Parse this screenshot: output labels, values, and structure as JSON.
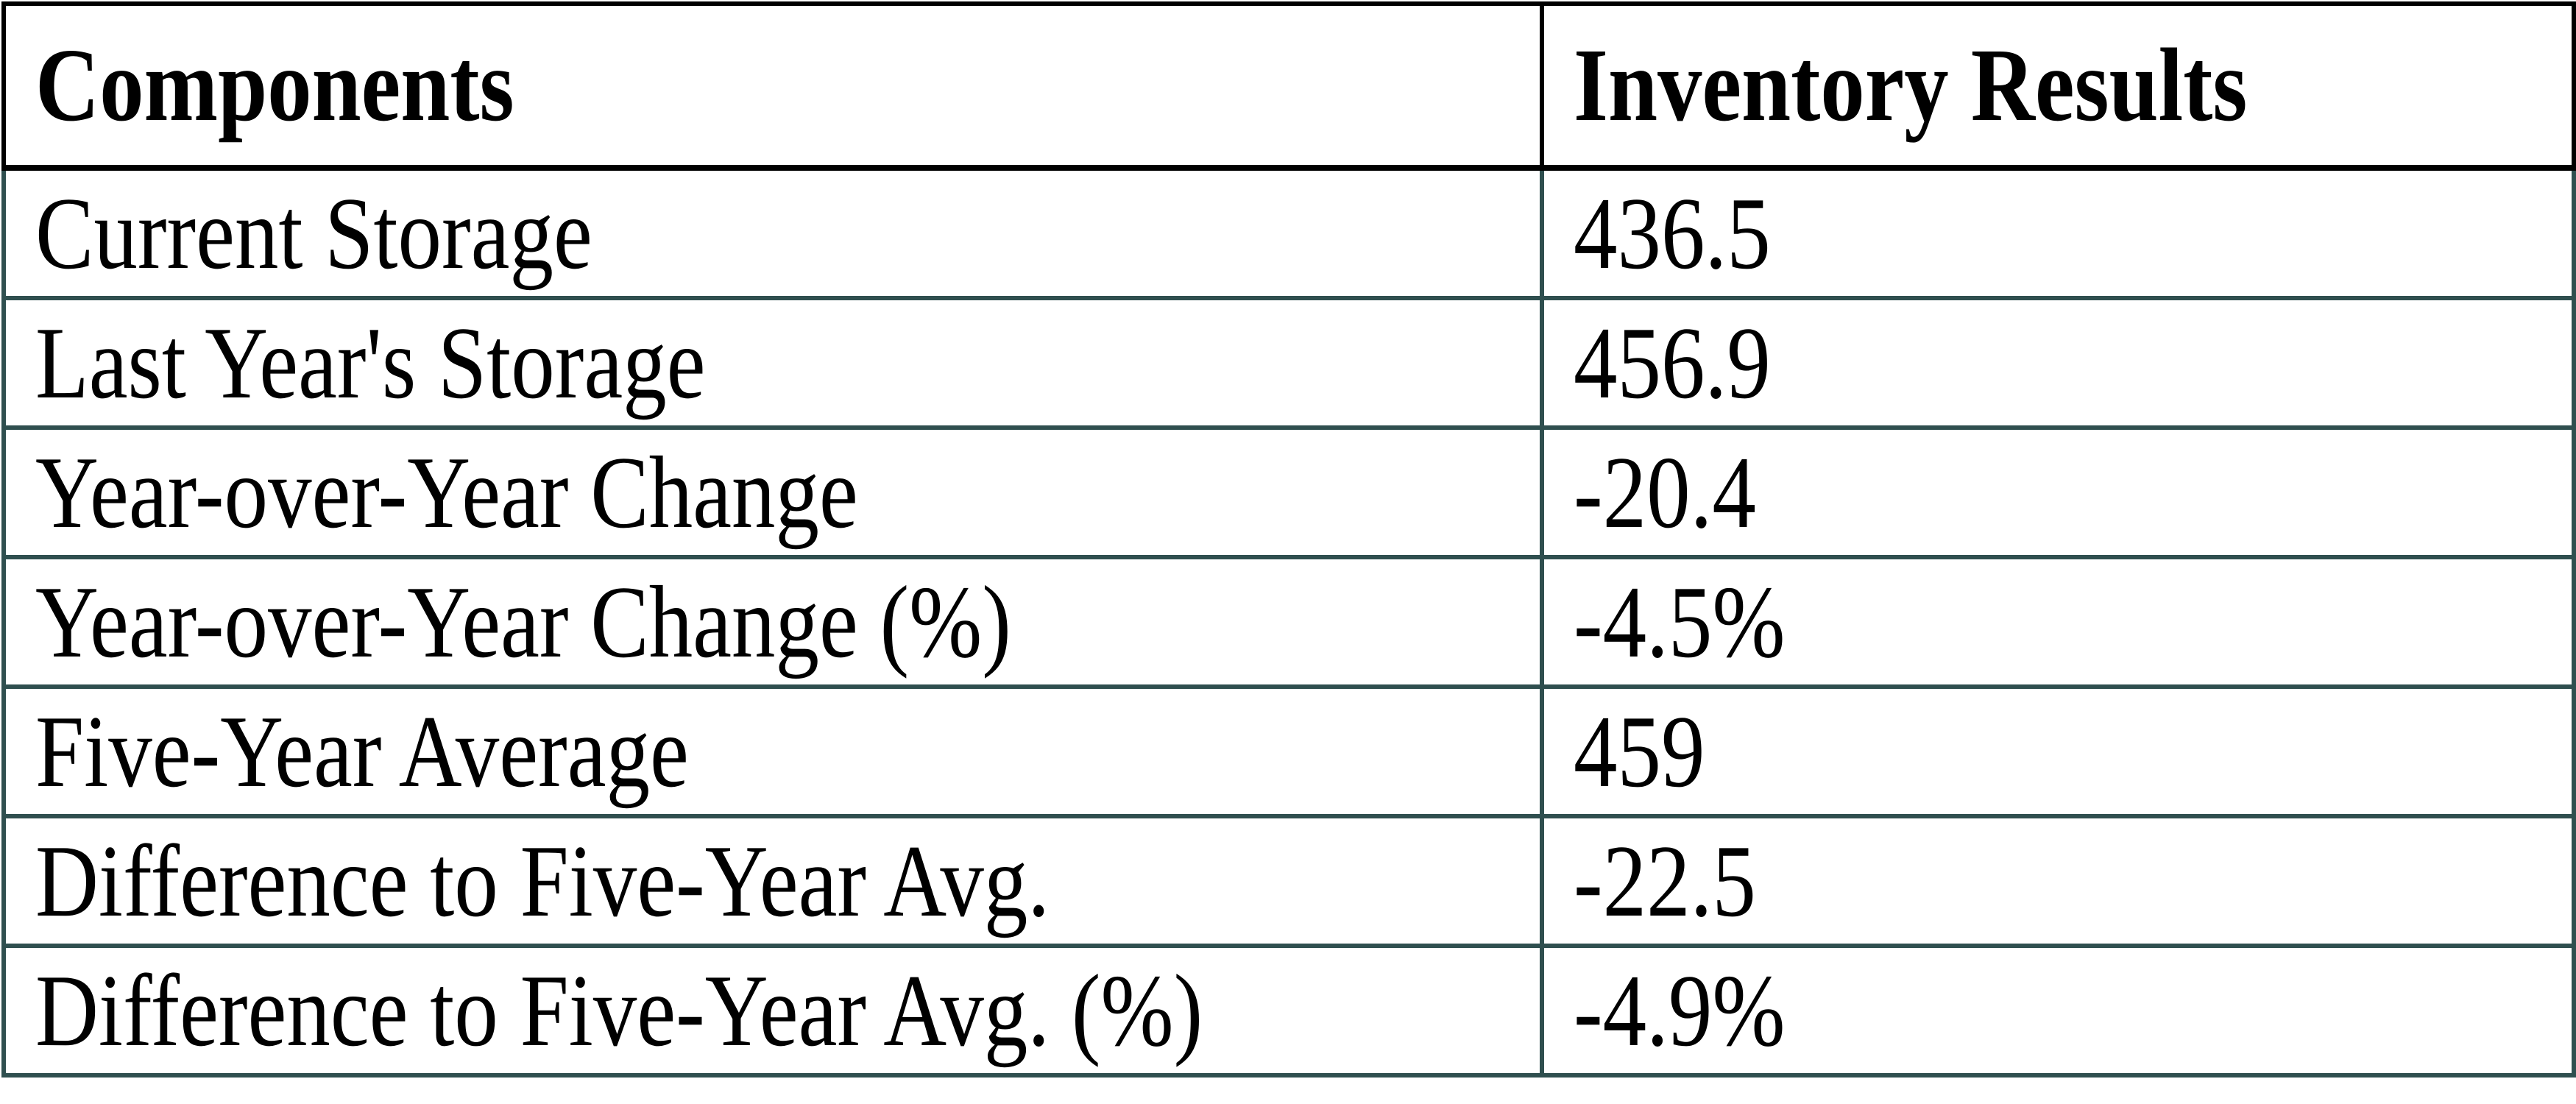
{
  "title": "Inventory Results table",
  "colors": {
    "background": "#ffffff",
    "text": "#000000",
    "header_border": "#000000",
    "body_border": "#2f4f4f"
  },
  "table": {
    "columns": [
      {
        "label": "Components"
      },
      {
        "label": "Inventory Results"
      }
    ],
    "rows": [
      {
        "component": "Current Storage",
        "result": "436.5"
      },
      {
        "component": "Last Year's Storage",
        "result": "456.9"
      },
      {
        "component": "Year-over-Year Change",
        "result": "-20.4"
      },
      {
        "component": "Year-over-Year Change (%)",
        "result": "-4.5%"
      },
      {
        "component": "Five-Year Average",
        "result": "459"
      },
      {
        "component": "Difference to Five-Year Avg.",
        "result": "-22.5"
      },
      {
        "component": "Difference to Five-Year Avg. (%)",
        "result": "-4.9%"
      }
    ]
  },
  "chart_data": {
    "type": "table",
    "title": "",
    "columns": [
      "Components",
      "Inventory Results"
    ],
    "rows": [
      [
        "Current Storage",
        436.5
      ],
      [
        "Last Year's Storage",
        456.9
      ],
      [
        "Year-over-Year Change",
        -20.4
      ],
      [
        "Year-over-Year Change (%)",
        "-4.5%"
      ],
      [
        "Five-Year Average",
        459
      ],
      [
        "Difference to Five-Year Avg.",
        -22.5
      ],
      [
        "Difference to Five-Year Avg. (%)",
        "-4.9%"
      ]
    ],
    "layout_hints": {
      "header_style": "bold, black thick borders",
      "body_border_color": "#2f4f4f",
      "grid": true,
      "column_split_fraction": 0.598
    }
  }
}
